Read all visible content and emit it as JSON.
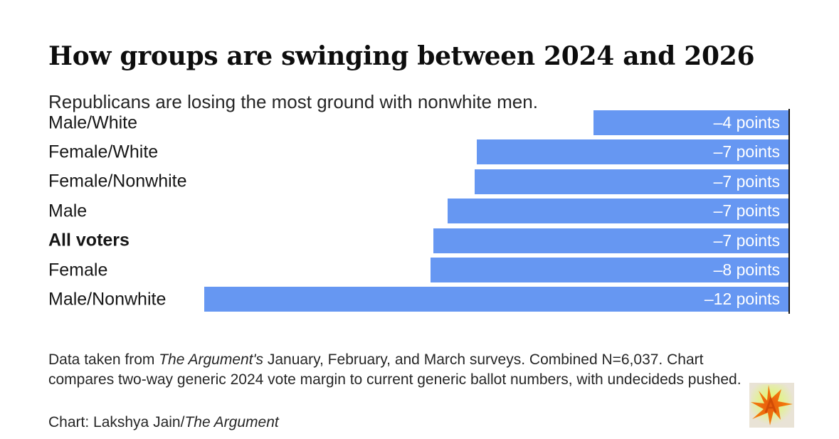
{
  "header": {
    "title": "How groups are swinging between 2024 and 2026",
    "subtitle": "Republicans are losing the most ground with nonwhite men."
  },
  "chart_data": {
    "type": "bar",
    "orientation": "horizontal",
    "title": "How groups are swinging between 2024 and 2026",
    "subtitle": "Republicans are losing the most ground with nonwhite men.",
    "categories": [
      "Male/White",
      "Female/White",
      "Female/Nonwhite",
      "Male",
      "All voters",
      "Female",
      "Male/Nonwhite"
    ],
    "values": [
      -4,
      -7,
      -7,
      -7,
      -7,
      -8,
      -12
    ],
    "value_labels": [
      "–4 points",
      "–7 points",
      "–7 points",
      "–7 points",
      "–7 points",
      "–8 points",
      "–12 points"
    ],
    "bar_lengths_points": [
      4.0,
      6.4,
      6.45,
      7.0,
      7.3,
      7.35,
      12.0
    ],
    "emphasized_category": "All voters",
    "xlabel": "",
    "ylabel": "",
    "xlim": [
      -12.05,
      0
    ],
    "grid": false,
    "legend": false,
    "bar_color": "#6697f2",
    "axis_color": "#161616",
    "value_label_color": "#ffffff"
  },
  "footer": {
    "note_pre": "Data taken from ",
    "note_italic": "The Argument's",
    "note_post": " January, February, and March surveys. Combined N=6,037. Chart compares two-way generic 2024 vote margin to current generic ballot numbers, with undecideds pushed.",
    "credit_pre": "Chart: Lakshya Jain/",
    "credit_italic": "The Argument"
  },
  "logo": {
    "name": "the-argument-starburst-logo",
    "background_color": "#e9e3d6",
    "glow_color": "#e4f25e",
    "burst_color": "#f0720e"
  }
}
